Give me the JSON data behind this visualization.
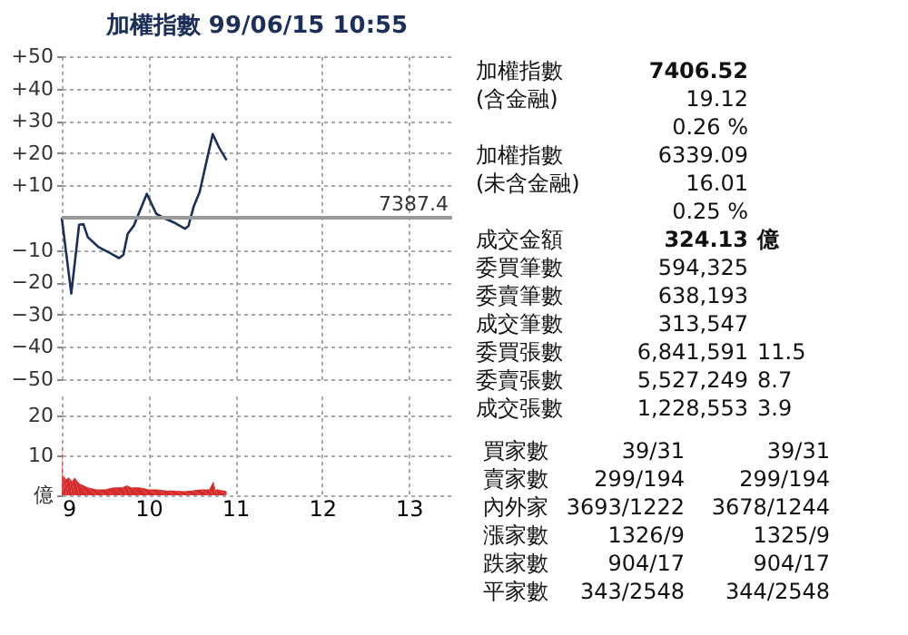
{
  "chart_data": [
    {
      "type": "line",
      "title": "加權指數 99/06/15 10:55",
      "x": [
        9.0,
        9.11,
        9.2,
        9.25,
        9.3,
        9.42,
        9.56,
        9.66,
        9.71,
        9.76,
        9.83,
        9.98,
        10.09,
        10.21,
        10.31,
        10.42,
        10.46,
        10.52,
        10.59,
        10.66,
        10.74,
        10.81,
        10.9
      ],
      "series": [
        {
          "color": "#1c2f5a",
          "values": [
            0,
            -23.5,
            -2.2,
            -2,
            -6,
            -9,
            -11,
            -12.5,
            -11.5,
            -5,
            -2.5,
            7.4,
            1.2,
            -0.5,
            -1.7,
            -3.4,
            -2.6,
            3.4,
            8,
            16.4,
            25.9,
            21.9,
            17.8
          ]
        }
      ],
      "xlim": [
        9,
        13.5
      ],
      "xticks": [
        9,
        10,
        11,
        12,
        13
      ],
      "ylim": [
        -50,
        50
      ],
      "yticks": [
        {
          "value": 50,
          "label": "+50"
        },
        {
          "value": 40,
          "label": "+40"
        },
        {
          "value": 30,
          "label": "+30"
        },
        {
          "value": 20,
          "label": "+20"
        },
        {
          "value": 10,
          "label": "+10"
        },
        -10,
        -20,
        -30,
        -40,
        -50
      ],
      "ref_lines": [
        {
          "axis": "y",
          "value": 0,
          "color": "#999999"
        }
      ],
      "annotations": [
        "7387.4"
      ],
      "grid": true,
      "legend": false,
      "tick_labels": "y",
      "line_style": "solid",
      "marker": "none"
    },
    {
      "type": "area",
      "x": [
        9.0,
        9.01,
        9.02,
        9.05,
        9.08,
        9.12,
        9.15,
        9.2,
        9.3,
        9.4,
        9.5,
        9.6,
        9.7,
        9.75,
        9.8,
        9.9,
        10.0,
        10.1,
        10.2,
        10.3,
        10.4,
        10.5,
        10.6,
        10.7,
        10.75,
        10.77,
        10.8,
        10.9
      ],
      "series": [
        {
          "color": "#d42a2a",
          "values": [
            14,
            4,
            5,
            4,
            4.5,
            3.5,
            4.5,
            3,
            2,
            1.5,
            1.5,
            2,
            2,
            2.5,
            2,
            2,
            1.5,
            1.5,
            1.2,
            1.2,
            1,
            1.2,
            1.5,
            1.5,
            3.5,
            1.5,
            1.5,
            1
          ]
        }
      ],
      "xlim": [
        9,
        13.5
      ],
      "xticks": [
        9,
        10,
        11,
        12,
        13
      ],
      "ylim": [
        0,
        25
      ],
      "yticks": [
        {
          "value": 0,
          "label": "億"
        },
        10,
        20
      ],
      "grid": true,
      "legend": false
    },
    {
      "type": "other",
      "annotations": [
        "加權指數  7406.52",
        "(含金融)  19.12",
        "  0.26 %",
        "加權指數  6339.09",
        "(未含金融)  16.01",
        "  0.25 %",
        "成交金額  324.13  億",
        "委買筆數  594,325",
        "委賣筆數  638,193",
        "成交筆數  313,547",
        "委買張數  6,841,591  11.5",
        "委賣張數  5,527,249  8.7",
        "成交張數  1,228,553  3.9",
        "買家數  39/31  39/31",
        "賣家數  299/194  299/194",
        "內外家  3693/1222  3678/1244",
        "漲家數  1326/9  1325/9",
        "跌家數  904/17  904/17",
        "平家數  343/2548  344/2548"
      ]
    }
  ]
}
